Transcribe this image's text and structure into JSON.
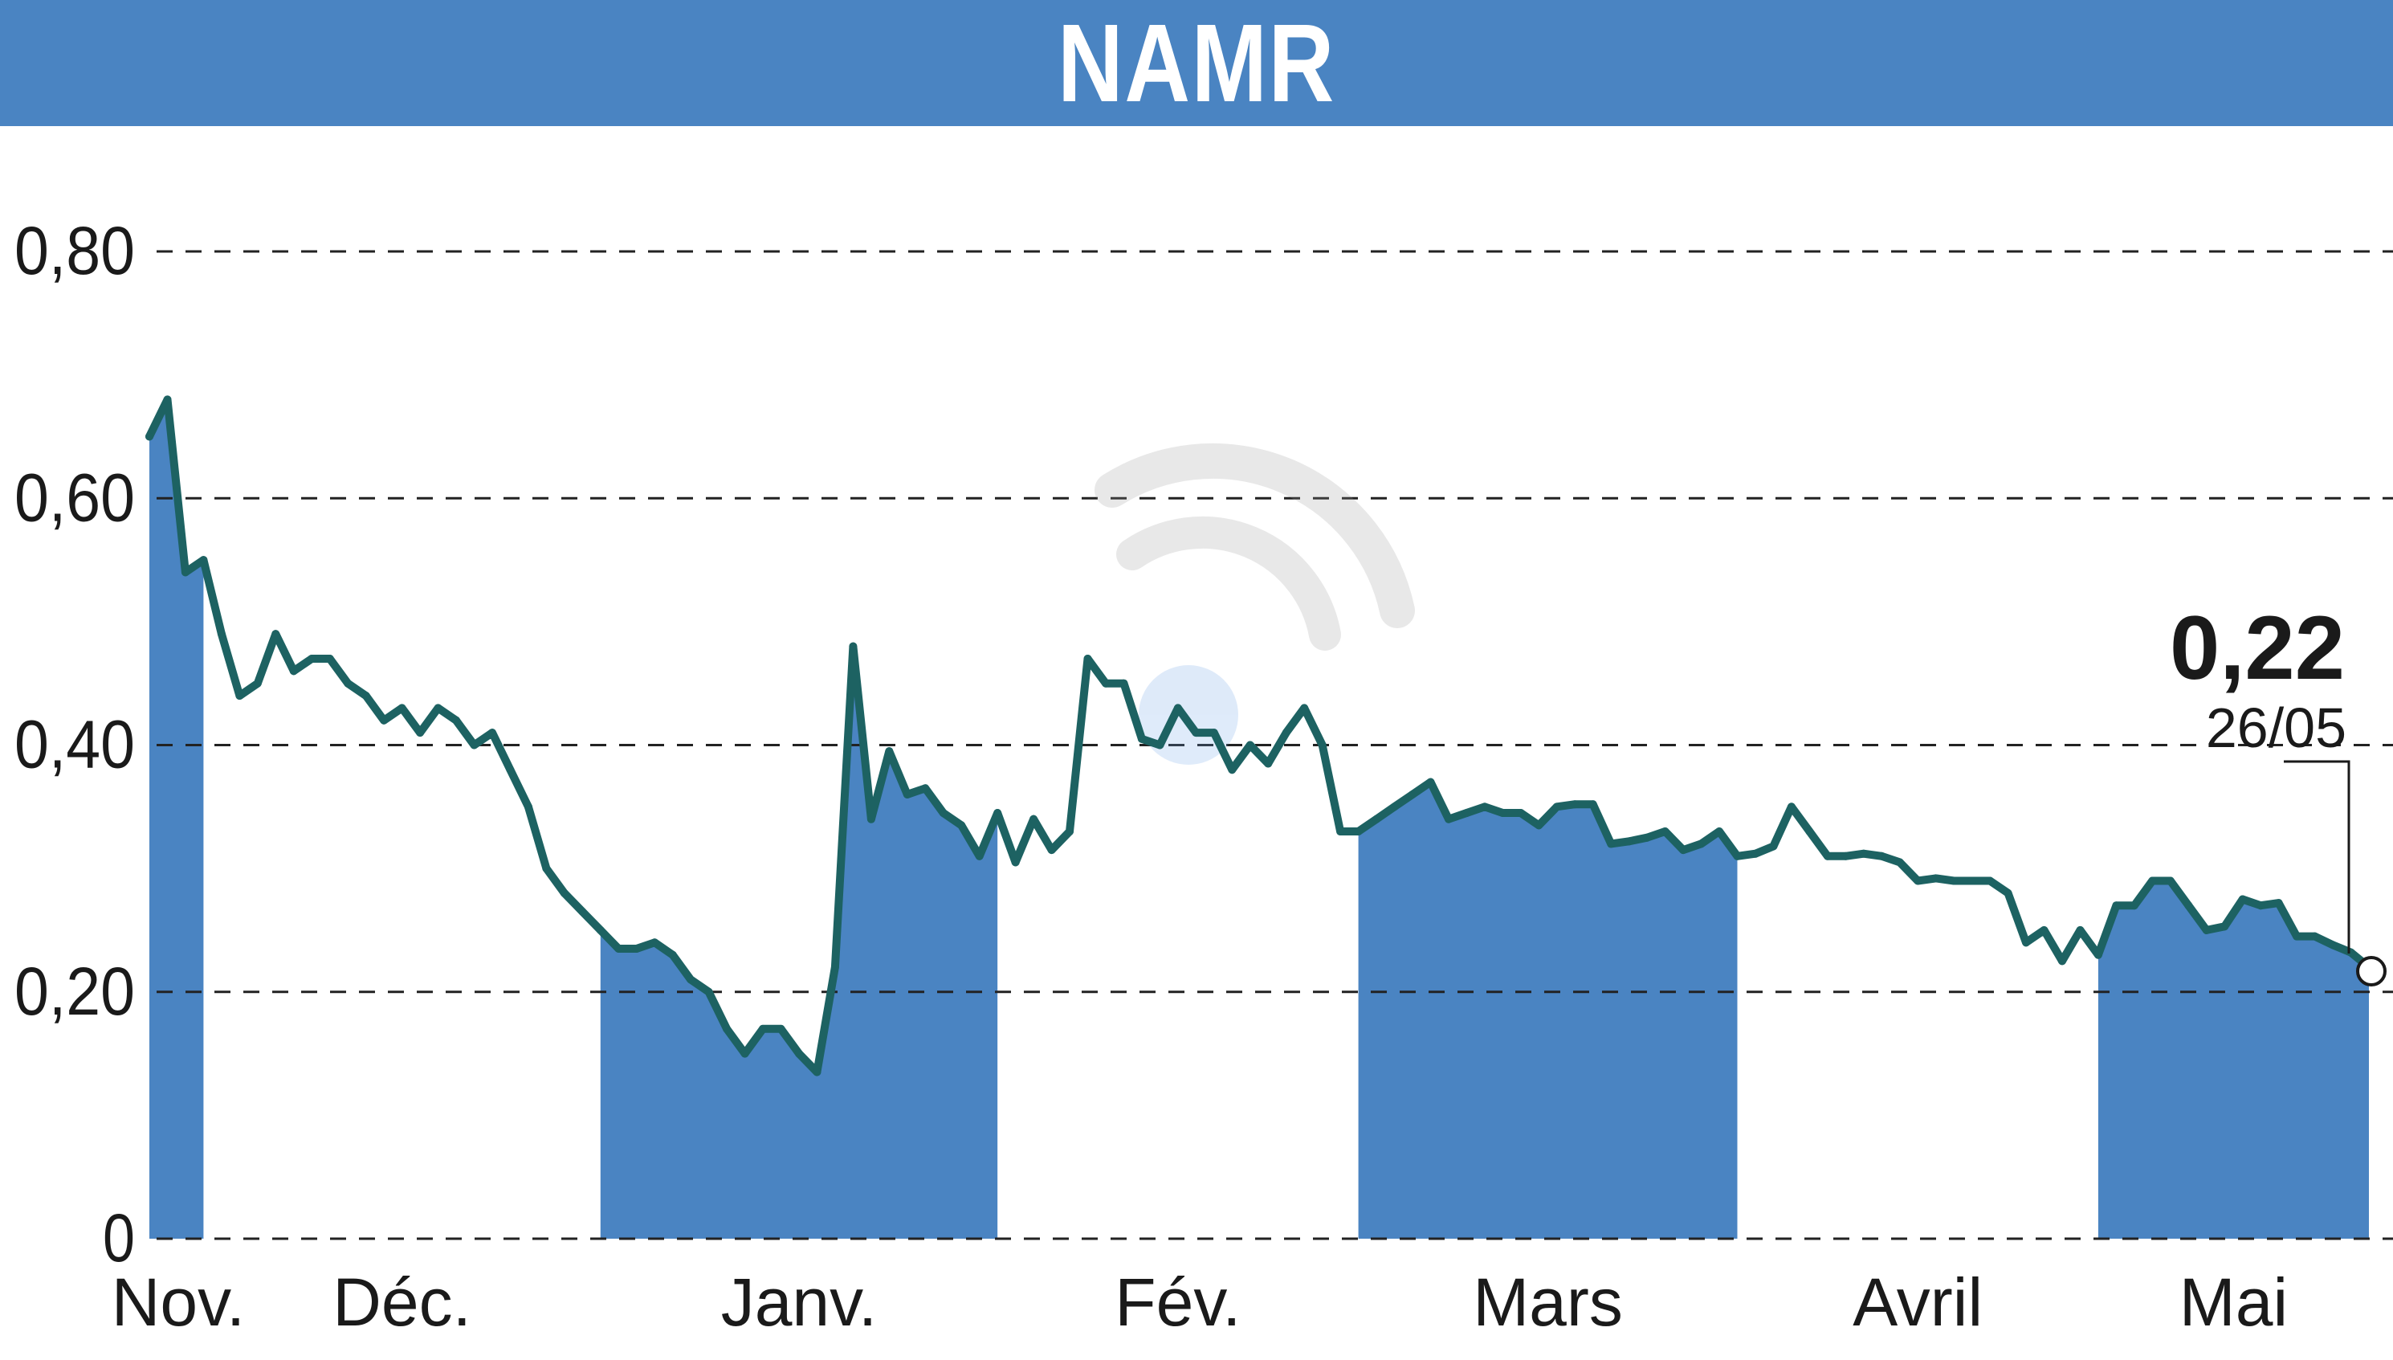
{
  "header": {
    "title": "NAMR"
  },
  "colors": {
    "header": "#4a84c2",
    "band": "#4a84c2",
    "line": "#1d6262",
    "grid": "#222222"
  },
  "chart_data": {
    "type": "line",
    "title": "NAMR",
    "xlabel": "",
    "ylabel": "",
    "ylim": [
      0,
      0.8
    ],
    "grid": true,
    "y_ticks": [
      {
        "value": 0,
        "label": "0"
      },
      {
        "value": 0.2,
        "label": "0,20"
      },
      {
        "value": 0.4,
        "label": "0,40"
      },
      {
        "value": 0.6,
        "label": "0,60"
      },
      {
        "value": 0.8,
        "label": "0,80"
      }
    ],
    "months": [
      {
        "label": "Nov.",
        "start": 0,
        "end": 3
      },
      {
        "label": "Déc.",
        "start": 3,
        "end": 25
      },
      {
        "label": "Janv.",
        "start": 25,
        "end": 47
      },
      {
        "label": "Fév.",
        "start": 47,
        "end": 67
      },
      {
        "label": "Mars",
        "start": 67,
        "end": 88
      },
      {
        "label": "Avril",
        "start": 88,
        "end": 108
      },
      {
        "label": "Mai",
        "start": 108,
        "end": 125
      }
    ],
    "shaded_months": [
      "Nov.",
      "Janv.",
      "Mars",
      "Mai"
    ],
    "series": [
      {
        "values": [
          0.65,
          0.68,
          0.54,
          0.55,
          0.49,
          0.44,
          0.45,
          0.49,
          0.46,
          0.47,
          0.47,
          0.45,
          0.44,
          0.42,
          0.43,
          0.41,
          0.43,
          0.42,
          0.4,
          0.41,
          0.38,
          0.35,
          0.3,
          0.28,
          0.265,
          0.25,
          0.235,
          0.235,
          0.24,
          0.23,
          0.21,
          0.2,
          0.17,
          0.15,
          0.17,
          0.17,
          0.15,
          0.135,
          0.22,
          0.48,
          0.34,
          0.395,
          0.36,
          0.365,
          0.345,
          0.335,
          0.31,
          0.345,
          0.305,
          0.34,
          0.315,
          0.33,
          0.47,
          0.45,
          0.45,
          0.405,
          0.4,
          0.43,
          0.41,
          0.41,
          0.38,
          0.4,
          0.385,
          0.41,
          0.43,
          0.4,
          0.33,
          0.33,
          0.34,
          0.35,
          0.36,
          0.37,
          0.34,
          0.345,
          0.35,
          0.345,
          0.345,
          0.335,
          0.35,
          0.352,
          0.352,
          0.32,
          0.322,
          0.325,
          0.33,
          0.315,
          0.32,
          0.33,
          0.31,
          0.312,
          0.318,
          0.35,
          0.33,
          0.31,
          0.31,
          0.312,
          0.31,
          0.305,
          0.29,
          0.292,
          0.29,
          0.29,
          0.29,
          0.28,
          0.24,
          0.25,
          0.225,
          0.25,
          0.23,
          0.27,
          0.27,
          0.29,
          0.29,
          0.27,
          0.25,
          0.253,
          0.275,
          0.27,
          0.272,
          0.245,
          0.245,
          0.238,
          0.232,
          0.22
        ]
      }
    ],
    "last_point": {
      "value": 0.22,
      "label": "0,22",
      "date": "26/05"
    }
  }
}
